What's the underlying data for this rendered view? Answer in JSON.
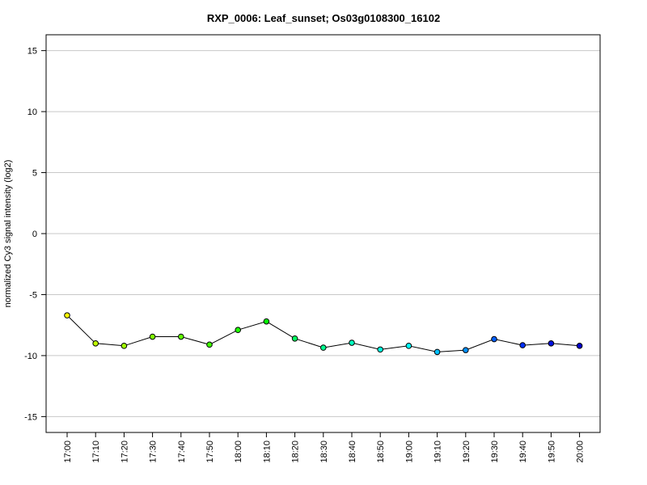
{
  "chart_data": {
    "type": "line",
    "title": "RXP_0006: Leaf_sunset; Os03g0108300_16102",
    "xlabel": "",
    "ylabel": "normalized Cy3 signal intensity (log2)",
    "categories": [
      "17:00",
      "17:10",
      "17:20",
      "17:30",
      "17:40",
      "17:50",
      "18:00",
      "18:10",
      "18:20",
      "18:30",
      "18:40",
      "18:50",
      "19:00",
      "19:10",
      "19:20",
      "19:30",
      "19:40",
      "19:50",
      "20:00"
    ],
    "series": [
      {
        "values": [
          -6.7,
          -9.0,
          -9.2,
          -8.45,
          -8.45,
          -9.1,
          -7.9,
          -7.2,
          -8.6,
          -9.35,
          -8.95,
          -9.5,
          -9.2,
          -9.7,
          -9.55,
          -8.65,
          -9.15,
          -9.0,
          -9.2
        ],
        "point_colors": [
          "#FFFF00",
          "#C0FF00",
          "#A0FF00",
          "#80FF00",
          "#60FF00",
          "#40FF00",
          "#20FF00",
          "#00FF00",
          "#00FF60",
          "#00FF90",
          "#00FFC0",
          "#00FFE0",
          "#00FFFF",
          "#00C0FF",
          "#0090FF",
          "#0060FF",
          "#0030FF",
          "#0010E0",
          "#0000CC"
        ]
      }
    ],
    "ylim": [
      -16.3,
      16.3
    ],
    "yticks": [
      -15,
      -10,
      -5,
      0,
      5,
      10,
      15
    ],
    "grid": "horizontal"
  }
}
